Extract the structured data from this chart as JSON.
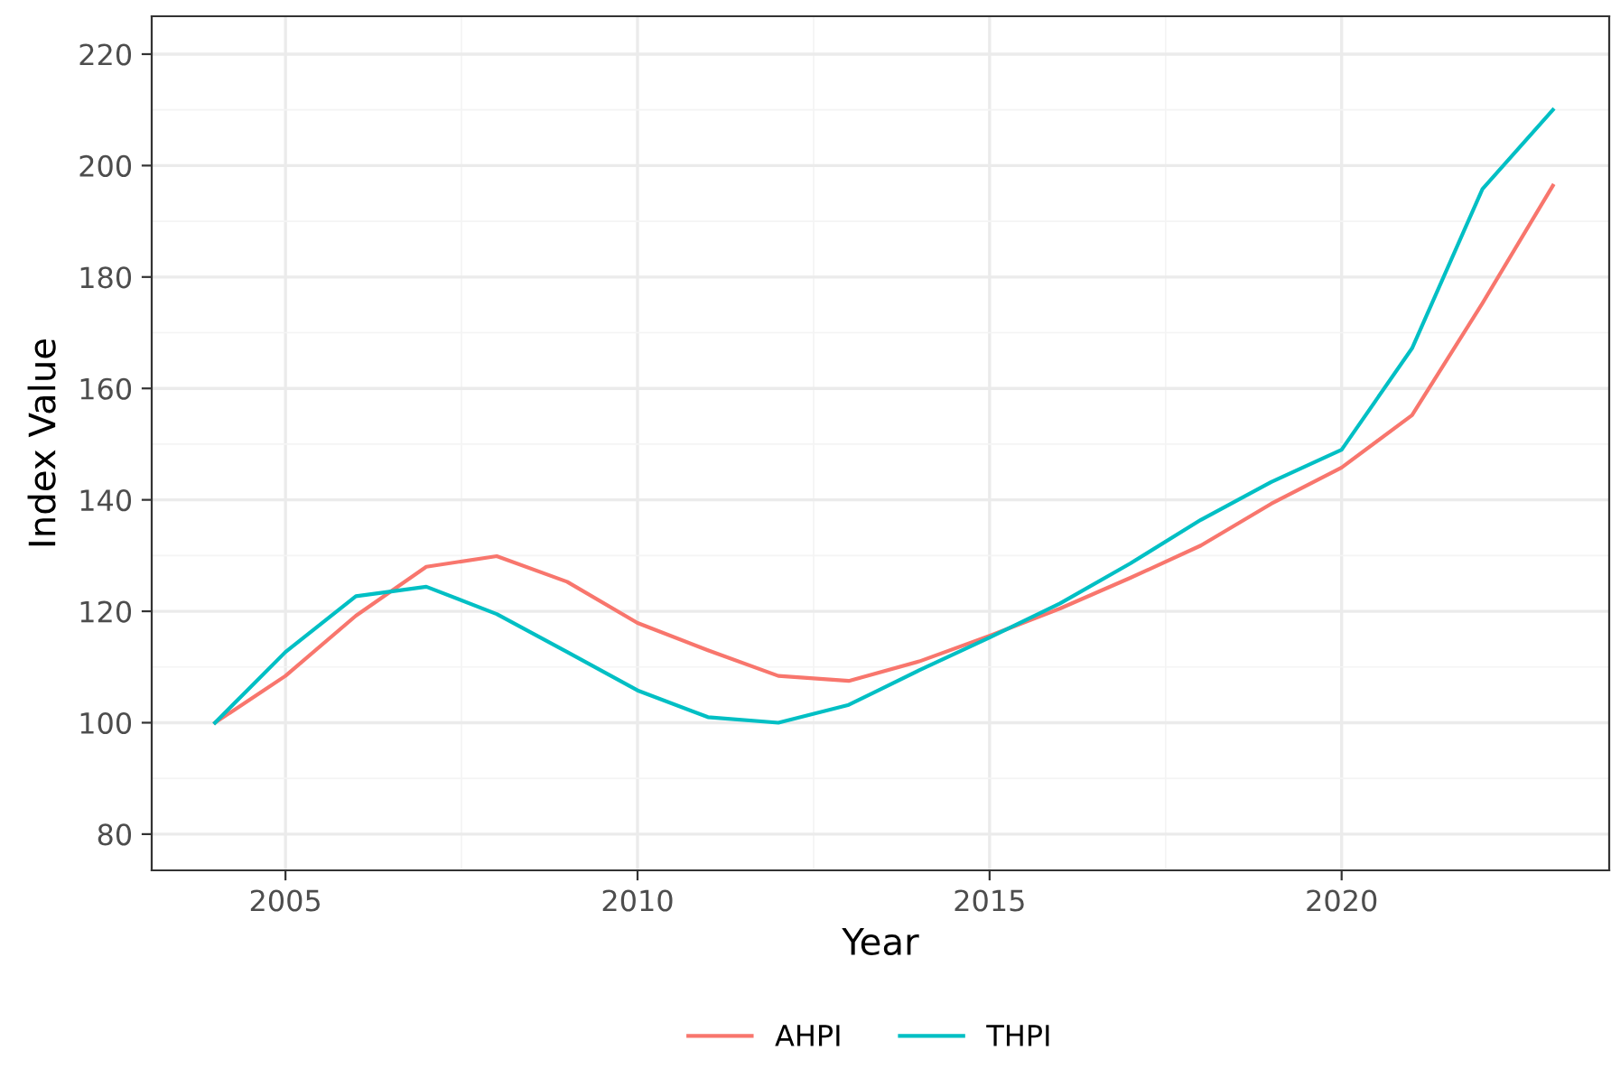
{
  "chart_data": {
    "type": "line",
    "xlabel": "Year",
    "ylabel": "Index Value",
    "x": [
      2004,
      2005,
      2006,
      2007,
      2008,
      2009,
      2010,
      2011,
      2012,
      2013,
      2014,
      2015,
      2016,
      2017,
      2018,
      2019,
      2020,
      2021,
      2022,
      2023
    ],
    "series": [
      {
        "name": "AHPI",
        "color": "#f8766d",
        "values": [
          100,
          108.4,
          119.2,
          128,
          129.9,
          125.3,
          117.9,
          113,
          108.4,
          107.5,
          111,
          115.6,
          120.5,
          126,
          131.8,
          139.3,
          145.8,
          155.2,
          175.3,
          196.4
        ]
      },
      {
        "name": "THPI",
        "color": "#00bfc4",
        "values": [
          100,
          112.7,
          122.7,
          124.4,
          119.5,
          112.7,
          105.8,
          101,
          100,
          103.2,
          109.4,
          115.3,
          121.4,
          128.6,
          136.4,
          143.2,
          149,
          167.2,
          195.8,
          210
        ]
      }
    ],
    "xlim": [
      2003.1,
      2023.8
    ],
    "ylim": [
      73.5,
      226.8
    ],
    "xticks": [
      2005,
      2010,
      2015,
      2020
    ],
    "yticks": [
      80,
      100,
      120,
      140,
      160,
      180,
      200,
      220
    ],
    "grid": true,
    "legend": "bottom",
    "line_style": "solid",
    "marker": "none"
  }
}
